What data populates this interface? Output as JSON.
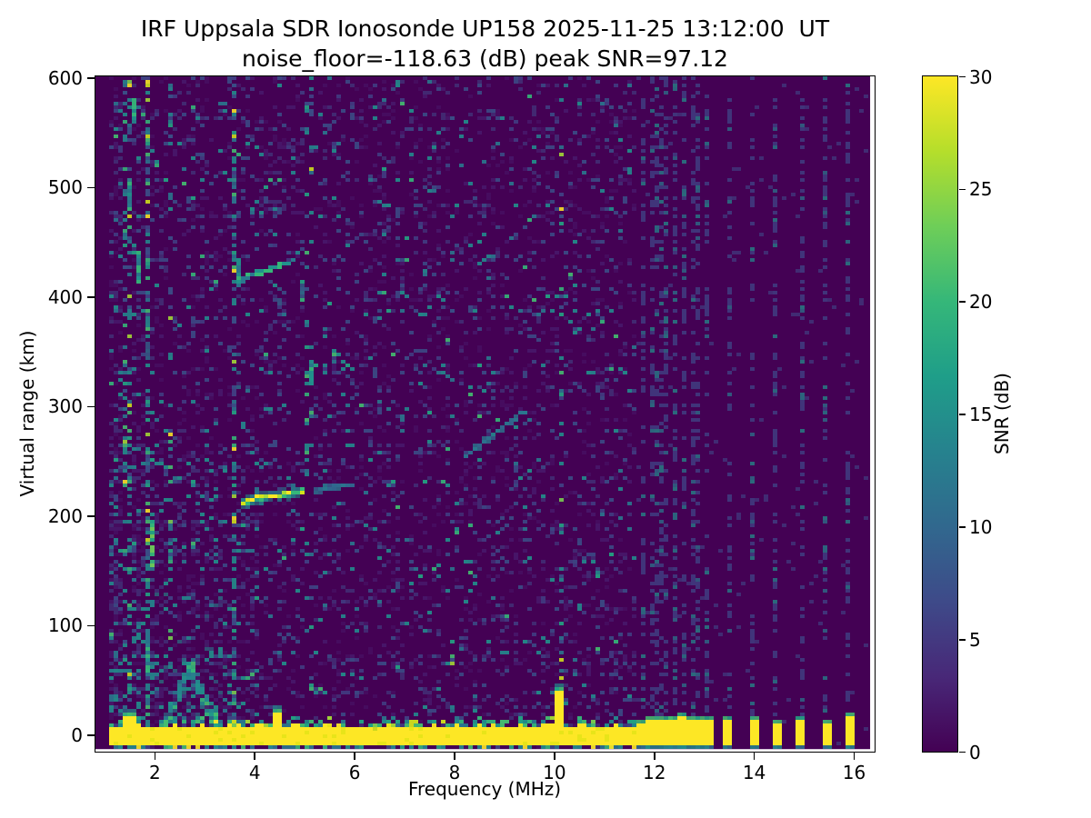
{
  "chart_data": {
    "type": "heatmap",
    "title": "IRF Uppsala SDR Ionosonde UP158 2025-11-25 13:12:00  UT",
    "subtitle": "noise_floor=-118.63 (dB) peak SNR=97.12",
    "xlabel": "Frequency (MHz)",
    "ylabel": "Virtual range (km)",
    "colorbar_label": "SNR (dB)",
    "colormap": "viridis",
    "xlim": [
      0.82,
      16.42
    ],
    "ylim": [
      -15.5,
      601
    ],
    "clim": [
      0,
      30
    ],
    "xticks": [
      2,
      4,
      6,
      8,
      10,
      12,
      14,
      16
    ],
    "yticks": [
      0,
      100,
      200,
      300,
      400,
      500,
      600
    ],
    "cticks": [
      0,
      5,
      10,
      15,
      20,
      25,
      30
    ],
    "grid": false,
    "legend": "colorbar-right",
    "palette": {
      "background": "#440154",
      "dims": [
        "#470d60",
        "#48176a",
        "#432c74"
      ],
      "blues": [
        "#414487",
        "#3b528b",
        "#39568c"
      ],
      "teals": [
        "#2a788e",
        "#23898e",
        "#21918c"
      ],
      "greens": [
        "#22a884",
        "#35b779",
        "#44bf70"
      ],
      "brights": [
        "#7ad151",
        "#a5db36",
        "#d2e21b",
        "#fde725"
      ],
      "band_yellow": "#fde725",
      "band_yellow_alt": "#e8e419",
      "viridis_stops": [
        "#440154",
        "#482878",
        "#3e4a89",
        "#31688e",
        "#26828e",
        "#1f9e89",
        "#35b779",
        "#6ece58",
        "#b5de2b",
        "#fde725"
      ]
    },
    "features": {
      "no_data_below_mhz": 1.06,
      "data_right_edge_mhz": 16.33,
      "data_bottom_km": -13.2,
      "ground_return": {
        "f_start": 1.06,
        "f_end": 11.62,
        "r_top": 6.2,
        "r_bottom": -8.6,
        "fringe_km": 6.5
      },
      "ground_spikes": [
        {
          "f": 10.12,
          "r_top": 38
        },
        {
          "f": 4.45,
          "r_top": 17
        },
        {
          "f": 1.5,
          "r_top": 14
        }
      ],
      "discrete_bars": {
        "freqs": [
          11.79,
          11.95,
          12.11,
          12.26,
          12.42,
          12.57,
          12.75,
          12.92,
          13.08,
          13.48,
          13.98,
          14.45,
          14.94,
          15.44,
          15.91
        ],
        "r_top": 11,
        "r_bottom": -8.5
      },
      "rfi_stripes": [
        {
          "f": 1.45,
          "strength": 0.32
        },
        {
          "f": 1.9,
          "strength": 0.5
        },
        {
          "f": 2.35,
          "strength": 0.25
        },
        {
          "f": 3.6,
          "strength": 0.45
        },
        {
          "f": 5.1,
          "strength": 0.14
        },
        {
          "f": 7.05,
          "strength": 0.1
        },
        {
          "f": 8.0,
          "strength": 0.08
        },
        {
          "f": 10.12,
          "strength": 0.22
        }
      ],
      "station_columns": {
        "halfwidth_mhz": 0.05,
        "probability": 0.3
      },
      "e_region_cusp": {
        "f_left": 2.18,
        "f_apex": 2.72,
        "f_right": 3.28,
        "r_base": 6,
        "r_apex": 62,
        "scatter_box": {
          "f1": 1.95,
          "f2": 3.45,
          "r_max": 135
        }
      },
      "echo_traces": [
        {
          "f1": 3.78,
          "r1": 212,
          "f2": 4.95,
          "r2": 222,
          "intensity": "bright"
        },
        {
          "f1": 5.25,
          "r1": 223,
          "f2": 5.95,
          "r2": 228,
          "intensity": "faint"
        },
        {
          "f1": 3.7,
          "r1": 414,
          "f2": 4.75,
          "r2": 432,
          "intensity": "medium"
        },
        {
          "f1": 8.2,
          "r1": 252,
          "f2": 9.45,
          "r2": 296,
          "intensity": "faint"
        }
      ],
      "vertical_dashes": [
        {
          "f": 3.72,
          "r1": 410,
          "r2": 433,
          "intensity": "medium"
        },
        {
          "f": 5.12,
          "r1": 320,
          "r2": 340,
          "intensity": "medium"
        },
        {
          "f": 5.0,
          "r1": 393,
          "r2": 411,
          "intensity": "faint"
        },
        {
          "f": 4.55,
          "r1": 393,
          "r2": 411,
          "intensity": "faint"
        },
        {
          "f": 3.7,
          "r1": 318,
          "r2": 346,
          "intensity": "faint"
        },
        {
          "f": 1.6,
          "r1": 555,
          "r2": 580,
          "intensity": "medium"
        },
        {
          "f": 1.72,
          "r1": 415,
          "r2": 440,
          "intensity": "medium"
        },
        {
          "f": 1.5,
          "r1": 480,
          "r2": 505,
          "intensity": "medium"
        },
        {
          "f": 1.84,
          "r1": 340,
          "r2": 360,
          "intensity": "faint"
        },
        {
          "f": 1.92,
          "r1": 155,
          "r2": 195,
          "intensity": "bright-green"
        },
        {
          "f": 1.88,
          "r1": 55,
          "r2": 95,
          "intensity": "medium"
        },
        {
          "f": 3.57,
          "r1": 485,
          "r2": 510,
          "intensity": "faint"
        }
      ]
    }
  }
}
